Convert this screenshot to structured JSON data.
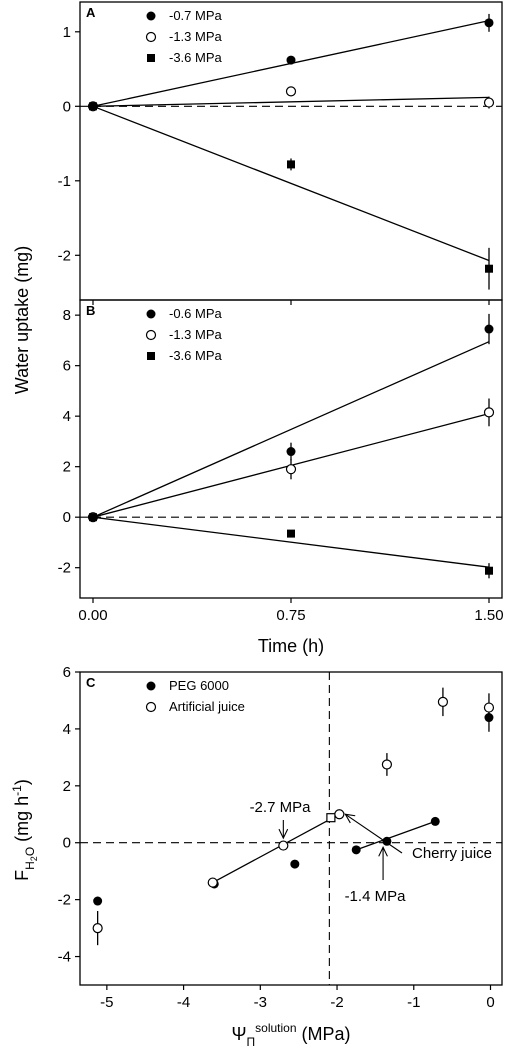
{
  "ylabel_shared": "Water uptake (mg)",
  "chart_data": [
    {
      "panel": "A",
      "type": "scatter",
      "xlim": [
        0,
        1.5
      ],
      "ylim": [
        -2.6,
        1.4
      ],
      "yticks": [
        -2,
        -1,
        0,
        1
      ],
      "yticklabels": [
        "-2",
        "-1",
        "0",
        "1"
      ],
      "xticks": [
        0,
        0.75,
        1.5
      ],
      "xticklabels": [],
      "legend_position": "top-left",
      "zero_line": "dashed",
      "series": [
        {
          "name": "-0.7 MPa",
          "marker": "filled-circle",
          "points": [
            {
              "x": 0,
              "y": 0,
              "err": 0
            },
            {
              "x": 0.75,
              "y": 0.62,
              "err": 0.05
            },
            {
              "x": 1.5,
              "y": 1.12,
              "err": 0.12
            }
          ],
          "fit": [
            [
              0,
              0
            ],
            [
              1.5,
              1.15
            ]
          ]
        },
        {
          "name": "-1.3 MPa",
          "marker": "open-circle",
          "points": [
            {
              "x": 0,
              "y": 0,
              "err": 0
            },
            {
              "x": 0.75,
              "y": 0.2,
              "err": 0.04
            },
            {
              "x": 1.5,
              "y": 0.05,
              "err": 0.08
            }
          ],
          "fit": [
            [
              0,
              0
            ],
            [
              1.5,
              0.12
            ]
          ]
        },
        {
          "name": "-3.6 MPa",
          "marker": "filled-square",
          "points": [
            {
              "x": 0,
              "y": 0,
              "err": 0
            },
            {
              "x": 0.75,
              "y": -0.78,
              "err": 0.08
            },
            {
              "x": 1.5,
              "y": -2.18,
              "err": 0.28
            }
          ],
          "fit": [
            [
              0,
              0
            ],
            [
              1.5,
              -2.07
            ]
          ]
        }
      ]
    },
    {
      "panel": "B",
      "type": "scatter",
      "xlim": [
        0,
        1.5
      ],
      "ylim": [
        -3.2,
        8.6
      ],
      "yticks": [
        -2,
        0,
        2,
        4,
        6,
        8
      ],
      "yticklabels": [
        "-2",
        "0",
        "2",
        "4",
        "6",
        "8"
      ],
      "xticks": [
        0,
        0.75,
        1.5
      ],
      "xticklabels": [
        "0.00",
        "0.75",
        "1.50"
      ],
      "xlabel": "Time (h)",
      "legend_position": "top-left",
      "zero_line": "dashed",
      "series": [
        {
          "name": "-0.6 MPa",
          "marker": "filled-circle",
          "points": [
            {
              "x": 0,
              "y": 0,
              "err": 0
            },
            {
              "x": 0.75,
              "y": 2.6,
              "err": 0.35
            },
            {
              "x": 1.5,
              "y": 7.45,
              "err": 0.6
            }
          ],
          "fit": [
            [
              0,
              0
            ],
            [
              1.5,
              6.95
            ]
          ]
        },
        {
          "name": "-1.3 MPa",
          "marker": "open-circle",
          "points": [
            {
              "x": 0,
              "y": 0,
              "err": 0
            },
            {
              "x": 0.75,
              "y": 1.9,
              "err": 0.4
            },
            {
              "x": 1.5,
              "y": 4.15,
              "err": 0.55
            }
          ],
          "fit": [
            [
              0,
              0
            ],
            [
              1.5,
              4.1
            ]
          ]
        },
        {
          "name": "-3.6 MPa",
          "marker": "filled-square",
          "points": [
            {
              "x": 0,
              "y": 0,
              "err": 0
            },
            {
              "x": 0.75,
              "y": -0.65,
              "err": 0.1
            },
            {
              "x": 1.5,
              "y": -2.12,
              "err": 0.3
            }
          ],
          "fit": [
            [
              0,
              0
            ],
            [
              1.5,
              -1.98
            ]
          ]
        }
      ]
    },
    {
      "panel": "C",
      "type": "scatter",
      "xlim": [
        -5.35,
        0.15
      ],
      "ylim": [
        -5.0,
        6.0
      ],
      "yticks": [
        -4,
        -2,
        0,
        2,
        4,
        6
      ],
      "yticklabels": [
        "-4",
        "-2",
        "0",
        "2",
        "4",
        "6"
      ],
      "xticks": [
        -5,
        -4,
        -3,
        -2,
        -1,
        0
      ],
      "xticklabels": [
        "-5",
        "-4",
        "-3",
        "-2",
        "-1",
        "0"
      ],
      "ylabel_main": "F",
      "ylabel_sub": "H",
      "ylabel_sub2": "2",
      "ylabel_sub3": "O",
      "ylabel_unit": "(mg h",
      "ylabel_unit_sup": "-1",
      "ylabel_unit_end": ")",
      "xlabel_main": "Ψ",
      "xlabel_sub": "Π",
      "xlabel_sup": "solution",
      "xlabel_unit": " (MPa)",
      "legend_position": "top-left",
      "zero_line": "dashed",
      "vertical_line_x": -2.1,
      "series": [
        {
          "name": "PEG 6000",
          "marker": "filled-circle",
          "points": [
            {
              "x": -5.12,
              "y": -2.05,
              "err": 0.15
            },
            {
              "x": -3.6,
              "y": -1.45,
              "err": 0.1
            },
            {
              "x": -2.55,
              "y": -0.75,
              "err": 0
            },
            {
              "x": -1.75,
              "y": -0.25,
              "err": 0
            },
            {
              "x": -1.35,
              "y": 0.05,
              "err": 0
            },
            {
              "x": -0.72,
              "y": 0.75,
              "err": 0
            },
            {
              "x": -0.02,
              "y": 4.4,
              "err": 0.5
            }
          ],
          "fit": [
            [
              -1.75,
              -0.25
            ],
            [
              -0.72,
              0.75
            ]
          ]
        },
        {
          "name": "Artificial juice",
          "marker": "open-circle",
          "points": [
            {
              "x": -5.12,
              "y": -3.0,
              "err": 0.6
            },
            {
              "x": -3.62,
              "y": -1.4,
              "err": 0.12
            },
            {
              "x": -2.7,
              "y": -0.1,
              "err": 0
            },
            {
              "x": -1.97,
              "y": 1.0,
              "err": 0
            },
            {
              "x": -1.35,
              "y": 2.75,
              "err": 0.4
            },
            {
              "x": -0.62,
              "y": 4.95,
              "err": 0.5
            },
            {
              "x": -0.02,
              "y": 4.75,
              "err": 0.5
            }
          ],
          "fit": [
            [
              -3.62,
              -1.4
            ],
            [
              -1.97,
              1.0
            ]
          ]
        },
        {
          "name": "Cherry juice",
          "marker": "open-square",
          "points": [
            {
              "x": -2.08,
              "y": 0.88,
              "err": 0
            }
          ]
        }
      ],
      "annotations": [
        {
          "text": "-2.7 MPa",
          "arrow_to": [
            -2.7,
            -0.05
          ]
        },
        {
          "text": "Cherry juice",
          "arrow_to": [
            -1.97,
            1.0
          ]
        },
        {
          "text": "-1.4 MPa",
          "arrow_to": [
            -1.4,
            0.05
          ]
        }
      ]
    }
  ]
}
